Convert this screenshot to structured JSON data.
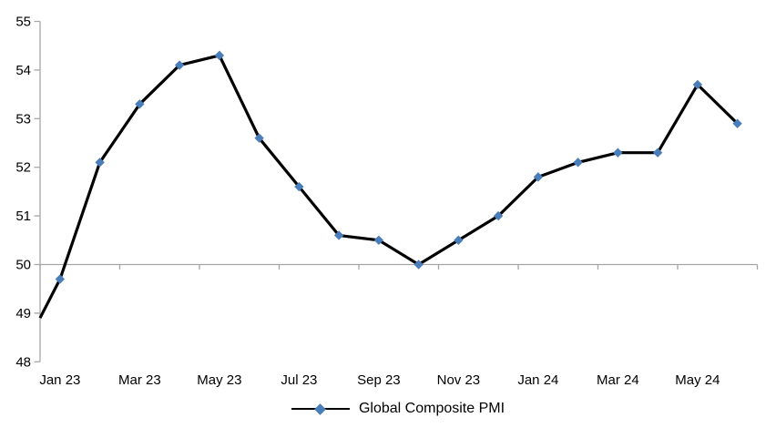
{
  "chart_data": {
    "type": "line",
    "title": "",
    "categories": [
      "Jan 23",
      "Feb 23",
      "Mar 23",
      "Apr 23",
      "May 23",
      "Jun 23",
      "Jul 23",
      "Aug 23",
      "Sep 23",
      "Oct 23",
      "Nov 23",
      "Dec 23",
      "Jan 24",
      "Feb 24",
      "Mar 24",
      "Apr 24",
      "May 24",
      "Jun 24"
    ],
    "series": [
      {
        "name": "Global Composite PMI",
        "values": [
          49.7,
          52.1,
          53.3,
          54.1,
          54.3,
          52.6,
          51.6,
          50.6,
          50.5,
          50.0,
          50.5,
          51.0,
          51.8,
          52.1,
          52.3,
          52.3,
          53.7,
          52.9
        ]
      }
    ],
    "left_edge_entry_value": 48.9,
    "ylim": [
      48,
      55
    ],
    "ytick_labels": [
      "48",
      "49",
      "50",
      "51",
      "52",
      "53",
      "54",
      "55"
    ],
    "xtick_labels": [
      "Jan 23",
      "Mar 23",
      "May 23",
      "Jul 23",
      "Sep 23",
      "Nov 23",
      "Jan 24",
      "Mar 24",
      "May 24"
    ],
    "x_label_interval": 2,
    "category_axis_crosses_at": 50,
    "xtick_interval_categories": 2,
    "gridlines": false,
    "marker": "diamond",
    "legend": {
      "position": "bottom-center",
      "label": "Global Composite PMI"
    },
    "colors": {
      "line": "#000000",
      "marker": "#4A7EBB",
      "axis": "#A6A6A6",
      "text": "#000000"
    }
  }
}
